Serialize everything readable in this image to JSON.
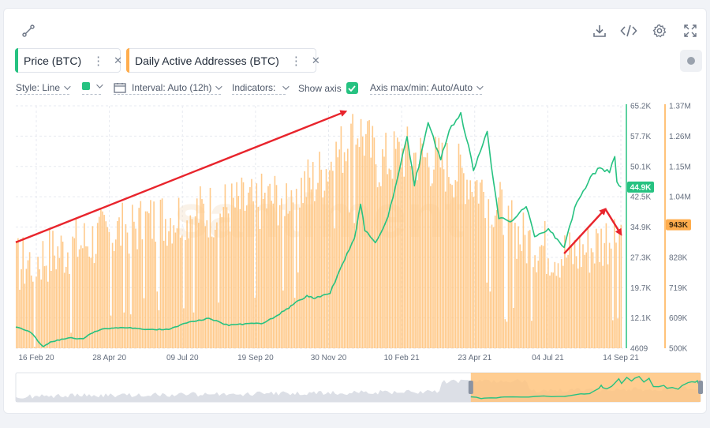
{
  "watermark": "santiment",
  "metrics": [
    {
      "label": "Price (BTC)",
      "color": "#26c281"
    },
    {
      "label": "Daily Active Addresses (BTC)",
      "color": "#ffad4d"
    }
  ],
  "toolbar": {
    "style": "Style: Line",
    "interval": "Interval: Auto (12h)",
    "indicators": "Indicators:",
    "show_axis": "Show axis",
    "axis_maxmin": "Axis max/min: Auto/Auto"
  },
  "icons": {
    "connect": "connect-icon",
    "download": "download-icon",
    "embed": "code-icon",
    "settings": "gear-icon",
    "fullscreen": "fullscreen-icon",
    "record": "record-icon"
  },
  "chart_data": {
    "type": "line",
    "x_labels": [
      "16 Feb 20",
      "28 Apr 20",
      "09 Jul 20",
      "19 Sep 20",
      "30 Nov 20",
      "10 Feb 21",
      "23 Apr 21",
      "04 Jul 21",
      "14 Sep 21"
    ],
    "x_range": [
      "2020-02-16",
      "2021-09-14"
    ],
    "price_axis": {
      "ticks": [
        "65.2K",
        "57.7K",
        "50.1K",
        "42.5K",
        "34.9K",
        "27.3K",
        "19.7K",
        "12.1K",
        "4609"
      ],
      "range": [
        4609,
        65200
      ],
      "current_label": "44.9K",
      "current_value": 44900
    },
    "addresses_axis": {
      "ticks": [
        "1.37M",
        "1.26M",
        "1.15M",
        "1.04M",
        "943K",
        "828K",
        "719K",
        "609K",
        "500K"
      ],
      "range": [
        500000,
        1370000
      ],
      "current_label": "943K",
      "current_value": 943000
    },
    "series": [
      {
        "name": "Price (BTC)",
        "color": "#26c281",
        "type": "line",
        "points": [
          [
            "2020-02-16",
            9900
          ],
          [
            "2020-03-01",
            8600
          ],
          [
            "2020-03-13",
            5000
          ],
          [
            "2020-03-20",
            6200
          ],
          [
            "2020-04-06",
            7200
          ],
          [
            "2020-04-20",
            7000
          ],
          [
            "2020-05-01",
            8800
          ],
          [
            "2020-05-10",
            9500
          ],
          [
            "2020-06-01",
            9700
          ],
          [
            "2020-06-20",
            9300
          ],
          [
            "2020-07-10",
            9300
          ],
          [
            "2020-07-27",
            10900
          ],
          [
            "2020-08-17",
            12100
          ],
          [
            "2020-09-05",
            10300
          ],
          [
            "2020-09-20",
            10700
          ],
          [
            "2020-10-08",
            10900
          ],
          [
            "2020-10-21",
            12800
          ],
          [
            "2020-11-05",
            15500
          ],
          [
            "2020-11-18",
            17800
          ],
          [
            "2020-11-26",
            17100
          ],
          [
            "2020-12-10",
            18300
          ],
          [
            "2020-12-17",
            22800
          ],
          [
            "2021-01-02",
            32000
          ],
          [
            "2021-01-08",
            40600
          ],
          [
            "2021-01-12",
            34000
          ],
          [
            "2021-01-22",
            31000
          ],
          [
            "2021-02-03",
            37500
          ],
          [
            "2021-02-10",
            45000
          ],
          [
            "2021-02-21",
            57500
          ],
          [
            "2021-02-28",
            45200
          ],
          [
            "2021-03-13",
            61000
          ],
          [
            "2021-03-25",
            51700
          ],
          [
            "2021-04-02",
            59000
          ],
          [
            "2021-04-13",
            63500
          ],
          [
            "2021-04-25",
            49000
          ],
          [
            "2021-05-08",
            58800
          ],
          [
            "2021-05-12",
            50000
          ],
          [
            "2021-05-19",
            37000
          ],
          [
            "2021-06-01",
            36500
          ],
          [
            "2021-06-14",
            40000
          ],
          [
            "2021-06-22",
            32500
          ],
          [
            "2021-07-05",
            34500
          ],
          [
            "2021-07-20",
            29800
          ],
          [
            "2021-07-30",
            39800
          ],
          [
            "2021-08-07",
            43900
          ],
          [
            "2021-08-14",
            47500
          ],
          [
            "2021-08-23",
            49700
          ],
          [
            "2021-09-01",
            48500
          ],
          [
            "2021-09-06",
            52500
          ],
          [
            "2021-09-08",
            46200
          ],
          [
            "2021-09-12",
            44900
          ]
        ]
      },
      {
        "name": "Daily Active Addresses (BTC)",
        "color": "#ffad4d",
        "type": "bar",
        "points": [
          [
            "2020-02-16",
            800000
          ],
          [
            "2020-03-15",
            840000
          ],
          [
            "2020-04-20",
            885000
          ],
          [
            "2020-06-01",
            940000
          ],
          [
            "2020-07-15",
            985000
          ],
          [
            "2020-09-01",
            1010000
          ],
          [
            "2020-10-15",
            1040000
          ],
          [
            "2020-11-25",
            1110000
          ],
          [
            "2020-12-20",
            1220000
          ],
          [
            "2021-01-05",
            1300000
          ],
          [
            "2021-01-25",
            1170000
          ],
          [
            "2021-02-15",
            1210000
          ],
          [
            "2021-03-10",
            1190000
          ],
          [
            "2021-04-01",
            1160000
          ],
          [
            "2021-04-25",
            1110000
          ],
          [
            "2021-05-15",
            1030000
          ],
          [
            "2021-06-10",
            900000
          ],
          [
            "2021-07-01",
            870000
          ],
          [
            "2021-07-25",
            840000
          ],
          [
            "2021-08-20",
            880000
          ],
          [
            "2021-09-14",
            950000
          ]
        ]
      }
    ],
    "annotations": [
      {
        "type": "arrow",
        "color": "#e8242c",
        "from": [
          "2020-02-16",
          880000
        ],
        "to": [
          "2020-12-25",
          1350000
        ]
      },
      {
        "type": "arrow",
        "color": "#e8242c",
        "from": [
          "2021-07-20",
          840000
        ],
        "to": [
          "2021-08-28",
          1000000
        ]
      },
      {
        "type": "arrow",
        "color": "#e8242c",
        "from": [
          "2021-08-28",
          1000000
        ],
        "to": [
          "2021-09-12",
          908000
        ]
      }
    ],
    "grid": true,
    "legend": "top-left"
  }
}
